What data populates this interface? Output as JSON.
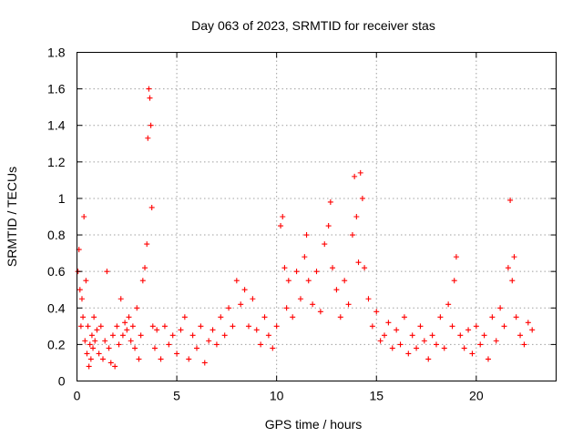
{
  "chart_data": {
    "type": "scatter",
    "title": "Day 063 of 2023, SRMTID for receiver stas",
    "xlabel": "GPS time / hours",
    "ylabel": "SRMTID / TECUs",
    "xlim": [
      0,
      24
    ],
    "ylim": [
      0,
      1.8
    ],
    "xticks": [
      0,
      5,
      10,
      15,
      20
    ],
    "yticks": [
      0,
      0.2,
      0.4,
      0.6,
      0.8,
      1,
      1.2,
      1.4,
      1.6,
      1.8
    ],
    "ytick_labels": [
      "0",
      "0.2",
      "0.4",
      "0.6",
      "0.8",
      "1",
      "1.2",
      "1.4",
      "1.6",
      "1.8"
    ],
    "grid": true,
    "marker": "plus",
    "color": "#ff0000",
    "series": [
      {
        "name": "SRMTID",
        "x": [
          0.05,
          0.1,
          0.15,
          0.2,
          0.25,
          0.3,
          0.35,
          0.4,
          0.45,
          0.5,
          0.55,
          0.6,
          0.65,
          0.7,
          0.75,
          0.8,
          0.85,
          0.9,
          1.0,
          1.1,
          1.2,
          1.3,
          1.4,
          1.5,
          1.6,
          1.7,
          1.8,
          1.9,
          2.0,
          2.1,
          2.2,
          2.3,
          2.4,
          2.5,
          2.6,
          2.7,
          2.8,
          2.9,
          3.0,
          3.1,
          3.2,
          3.3,
          3.4,
          3.5,
          3.55,
          3.6,
          3.65,
          3.7,
          3.75,
          3.8,
          3.9,
          4.0,
          4.2,
          4.4,
          4.6,
          4.8,
          5.0,
          5.2,
          5.4,
          5.6,
          5.8,
          6.0,
          6.2,
          6.4,
          6.6,
          6.8,
          7.0,
          7.2,
          7.4,
          7.6,
          7.8,
          8.0,
          8.2,
          8.4,
          8.6,
          8.8,
          9.0,
          9.2,
          9.4,
          9.6,
          9.8,
          10.0,
          10.2,
          10.3,
          10.4,
          10.5,
          10.6,
          10.8,
          11.0,
          11.2,
          11.4,
          11.5,
          11.6,
          11.8,
          12.0,
          12.2,
          12.4,
          12.6,
          12.7,
          12.8,
          13.0,
          13.2,
          13.4,
          13.6,
          13.8,
          13.9,
          14.0,
          14.1,
          14.2,
          14.3,
          14.4,
          14.6,
          14.8,
          15.0,
          15.2,
          15.4,
          15.6,
          15.8,
          16.0,
          16.2,
          16.4,
          16.6,
          16.8,
          17.0,
          17.2,
          17.4,
          17.6,
          17.8,
          18.0,
          18.2,
          18.4,
          18.6,
          18.8,
          18.9,
          19.0,
          19.2,
          19.4,
          19.6,
          19.8,
          20.0,
          20.2,
          20.4,
          20.6,
          20.8,
          21.0,
          21.2,
          21.4,
          21.6,
          21.7,
          21.8,
          21.9,
          22.0,
          22.2,
          22.4,
          22.6,
          22.8
        ],
        "y": [
          0.6,
          0.72,
          0.5,
          0.3,
          0.45,
          0.35,
          0.9,
          0.22,
          0.55,
          0.15,
          0.3,
          0.08,
          0.2,
          0.12,
          0.25,
          0.18,
          0.35,
          0.22,
          0.28,
          0.15,
          0.3,
          0.12,
          0.22,
          0.6,
          0.18,
          0.1,
          0.25,
          0.08,
          0.3,
          0.2,
          0.45,
          0.25,
          0.32,
          0.28,
          0.35,
          0.22,
          0.3,
          0.18,
          0.4,
          0.12,
          0.25,
          0.55,
          0.62,
          0.75,
          1.33,
          1.6,
          1.55,
          1.4,
          0.95,
          0.3,
          0.18,
          0.28,
          0.12,
          0.3,
          0.2,
          0.25,
          0.15,
          0.28,
          0.35,
          0.12,
          0.25,
          0.18,
          0.3,
          0.1,
          0.22,
          0.28,
          0.2,
          0.35,
          0.25,
          0.4,
          0.3,
          0.55,
          0.42,
          0.5,
          0.3,
          0.45,
          0.28,
          0.2,
          0.35,
          0.25,
          0.18,
          0.3,
          0.85,
          0.9,
          0.62,
          0.4,
          0.55,
          0.35,
          0.6,
          0.45,
          0.68,
          0.8,
          0.55,
          0.42,
          0.6,
          0.38,
          0.75,
          0.85,
          0.98,
          0.62,
          0.5,
          0.35,
          0.55,
          0.42,
          0.8,
          1.12,
          0.9,
          0.65,
          1.14,
          1.0,
          0.62,
          0.45,
          0.3,
          0.38,
          0.22,
          0.25,
          0.32,
          0.18,
          0.28,
          0.2,
          0.35,
          0.15,
          0.25,
          0.18,
          0.3,
          0.22,
          0.12,
          0.25,
          0.2,
          0.35,
          0.18,
          0.42,
          0.3,
          0.55,
          0.68,
          0.25,
          0.18,
          0.28,
          0.15,
          0.3,
          0.2,
          0.25,
          0.12,
          0.35,
          0.22,
          0.4,
          0.3,
          0.62,
          0.99,
          0.55,
          0.68,
          0.35,
          0.25,
          0.2,
          0.32,
          0.28
        ]
      }
    ]
  }
}
